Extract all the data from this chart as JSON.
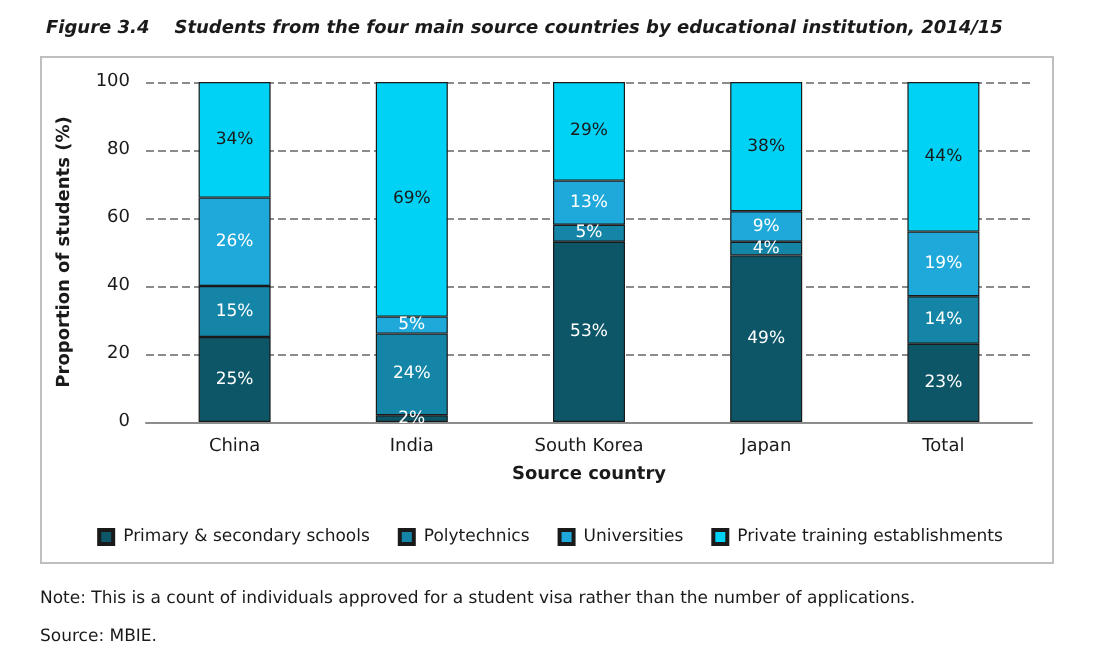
{
  "chart_data": {
    "type": "bar",
    "stacked": true,
    "title": "Figure 3.4    Students from the four main source countries by educational institution, 2014/15",
    "xlabel": "Source country",
    "ylabel": "Proportion of students (%)",
    "categories": [
      "China",
      "India",
      "South Korea",
      "Japan",
      "Total"
    ],
    "series": [
      {
        "name": "Primary & secondary schools",
        "color": "#0d5668",
        "values": [
          25,
          2,
          53,
          49,
          23
        ],
        "value_labels": [
          "25%",
          "2%",
          "53%",
          "49%",
          "23%"
        ]
      },
      {
        "name": "Polytechnics",
        "color": "#1485a6",
        "values": [
          15,
          24,
          5,
          4,
          14
        ],
        "value_labels": [
          "15%",
          "24%",
          "5%",
          "4%",
          "14%"
        ]
      },
      {
        "name": "Universities",
        "color": "#1fa9da",
        "values": [
          26,
          5,
          13,
          9,
          19
        ],
        "value_labels": [
          "26%",
          "5%",
          "13%",
          "9%",
          "19%"
        ]
      },
      {
        "name": "Private training establishments",
        "color": "#00d2f5",
        "values": [
          34,
          69,
          29,
          38,
          44
        ],
        "value_labels": [
          "34%",
          "69%",
          "29%",
          "38%",
          "44%"
        ]
      }
    ],
    "ylim": [
      0,
      100
    ],
    "yticks": [
      0,
      20,
      40,
      60,
      80,
      100
    ],
    "grid": "y",
    "legend": "bottom",
    "annotations": [
      "Note: This is a count of individuals approved for a student visa rather than the number of applications.",
      "Source: MBIE."
    ]
  }
}
